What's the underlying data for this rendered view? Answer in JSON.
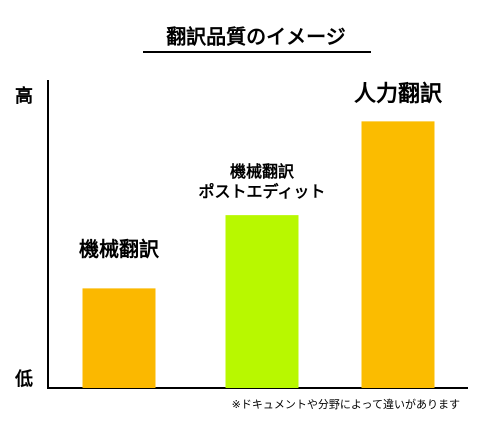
{
  "chart_data": {
    "type": "bar",
    "title": "翻訳品質のイメージ",
    "categories": [
      "機械翻訳",
      "機械翻訳\nポストエディット",
      "人力翻訳"
    ],
    "values": [
      34,
      59,
      91
    ],
    "colors": [
      "#fbb800",
      "#b8f800",
      "#fbbc00"
    ],
    "ylim": [
      0,
      100
    ],
    "yticks": [
      {
        "value": 0,
        "label": "低"
      },
      {
        "value": 100,
        "label": "高"
      }
    ],
    "note": "※ドキュメントや分野によって違いがあります"
  }
}
